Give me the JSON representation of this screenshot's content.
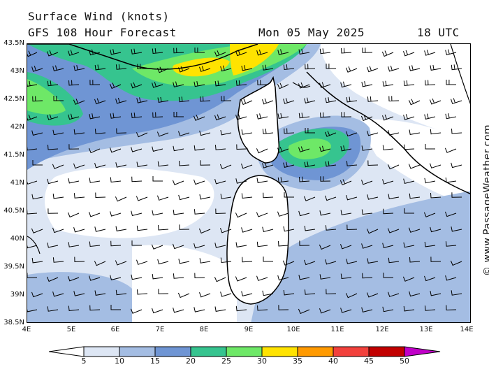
{
  "header": {
    "title": "Surface Wind (knots)",
    "forecast": "GFS 108 Hour Forecast",
    "date": "Mon 05 May 2025",
    "time": "18 UTC"
  },
  "credit": "© www.PassageWeather.com",
  "axes": {
    "y_labels": [
      "43.5N",
      "43N",
      "42.5N",
      "42N",
      "41.5N",
      "41N",
      "40.5N",
      "40N",
      "39.5N",
      "39N",
      "38.5N"
    ],
    "x_labels": [
      "4E",
      "5E",
      "6E",
      "7E",
      "8E",
      "9E",
      "10E",
      "11E",
      "12E",
      "13E",
      "14E"
    ]
  },
  "legend": {
    "labels": [
      "5",
      "10",
      "15",
      "20",
      "25",
      "30",
      "35",
      "40",
      "45",
      "50"
    ],
    "colors": [
      "#ffffff",
      "#dde6f4",
      "#a4bde3",
      "#6f95d4",
      "#36c48f",
      "#6ee867",
      "#ffe300",
      "#ff9a00",
      "#f2413c",
      "#c20000",
      "#c000c8"
    ]
  },
  "map": {
    "region": "Corsica and Sardinia, Tyrrhenian and Ligurian Sea",
    "wind_barbs": "westerly flow"
  }
}
